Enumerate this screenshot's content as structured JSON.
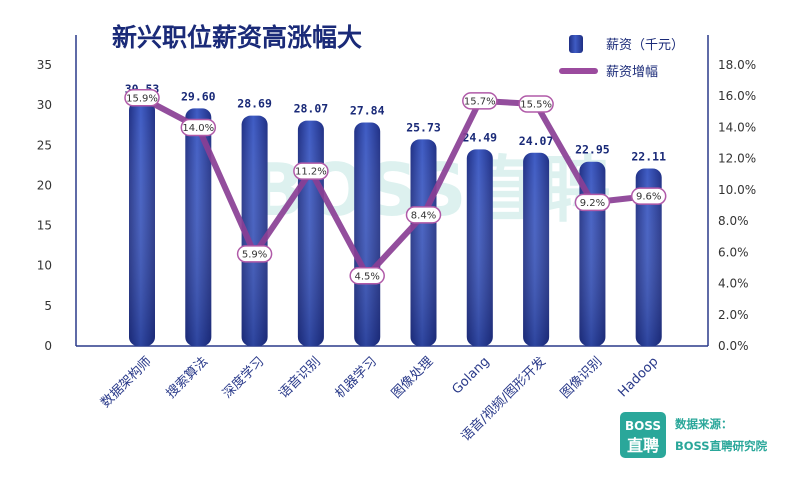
{
  "chart_data": {
    "type": "bar",
    "title": "新兴职位薪资高涨幅大",
    "categories": [
      "数据架构师",
      "搜索算法",
      "深度学习",
      "语音识别",
      "机器学习",
      "图像处理",
      "Golang",
      "语音/视频/图形开发",
      "图像识别",
      "Hadoop"
    ],
    "series": [
      {
        "name": "薪资（千元）",
        "type": "bar",
        "axis": "left",
        "color": "#2a3f9e",
        "values": [
          30.53,
          29.6,
          28.69,
          28.07,
          27.84,
          25.73,
          24.49,
          24.07,
          22.95,
          22.11
        ],
        "labels": [
          "30.53",
          "29.60",
          "28.69",
          "28.07",
          "27.84",
          "25.73",
          "24.49",
          "24.07",
          "22.95",
          "22.11"
        ]
      },
      {
        "name": "薪资增幅",
        "type": "line",
        "axis": "right",
        "color": "#9b4b9e",
        "values": [
          15.9,
          14.0,
          5.9,
          11.2,
          4.5,
          8.4,
          15.7,
          15.5,
          9.2,
          9.6
        ],
        "labels": [
          "15.9%",
          "14.0%",
          "5.9%",
          "11.2%",
          "4.5%",
          "8.4%",
          "15.7%",
          "15.5%",
          "9.2%",
          "9.6%"
        ]
      }
    ],
    "y_left": {
      "range": [
        0,
        35
      ],
      "ticks": [
        "0",
        "5",
        "10",
        "15",
        "20",
        "25",
        "30",
        "35"
      ]
    },
    "y_right": {
      "range": [
        0,
        18
      ],
      "ticks": [
        "0.0%",
        "2.0%",
        "4.0%",
        "6.0%",
        "8.0%",
        "10.0%",
        "12.0%",
        "14.0%",
        "16.0%",
        "18.0%"
      ]
    },
    "legend_position": "top-right",
    "grid": false
  },
  "legend": {
    "bar_label": "薪资（千元）",
    "line_label": "薪资增幅"
  },
  "watermark": "BOSS直聘",
  "logo": {
    "line1": "BOSS",
    "line2": "直聘"
  },
  "source": {
    "line1": "数据来源：",
    "line2": "BOSS直聘研究院"
  },
  "colors": {
    "bar": "#2a3f9e",
    "line": "#9b4b9e",
    "title": "#1a2a78",
    "logo": "#2aa79a"
  }
}
